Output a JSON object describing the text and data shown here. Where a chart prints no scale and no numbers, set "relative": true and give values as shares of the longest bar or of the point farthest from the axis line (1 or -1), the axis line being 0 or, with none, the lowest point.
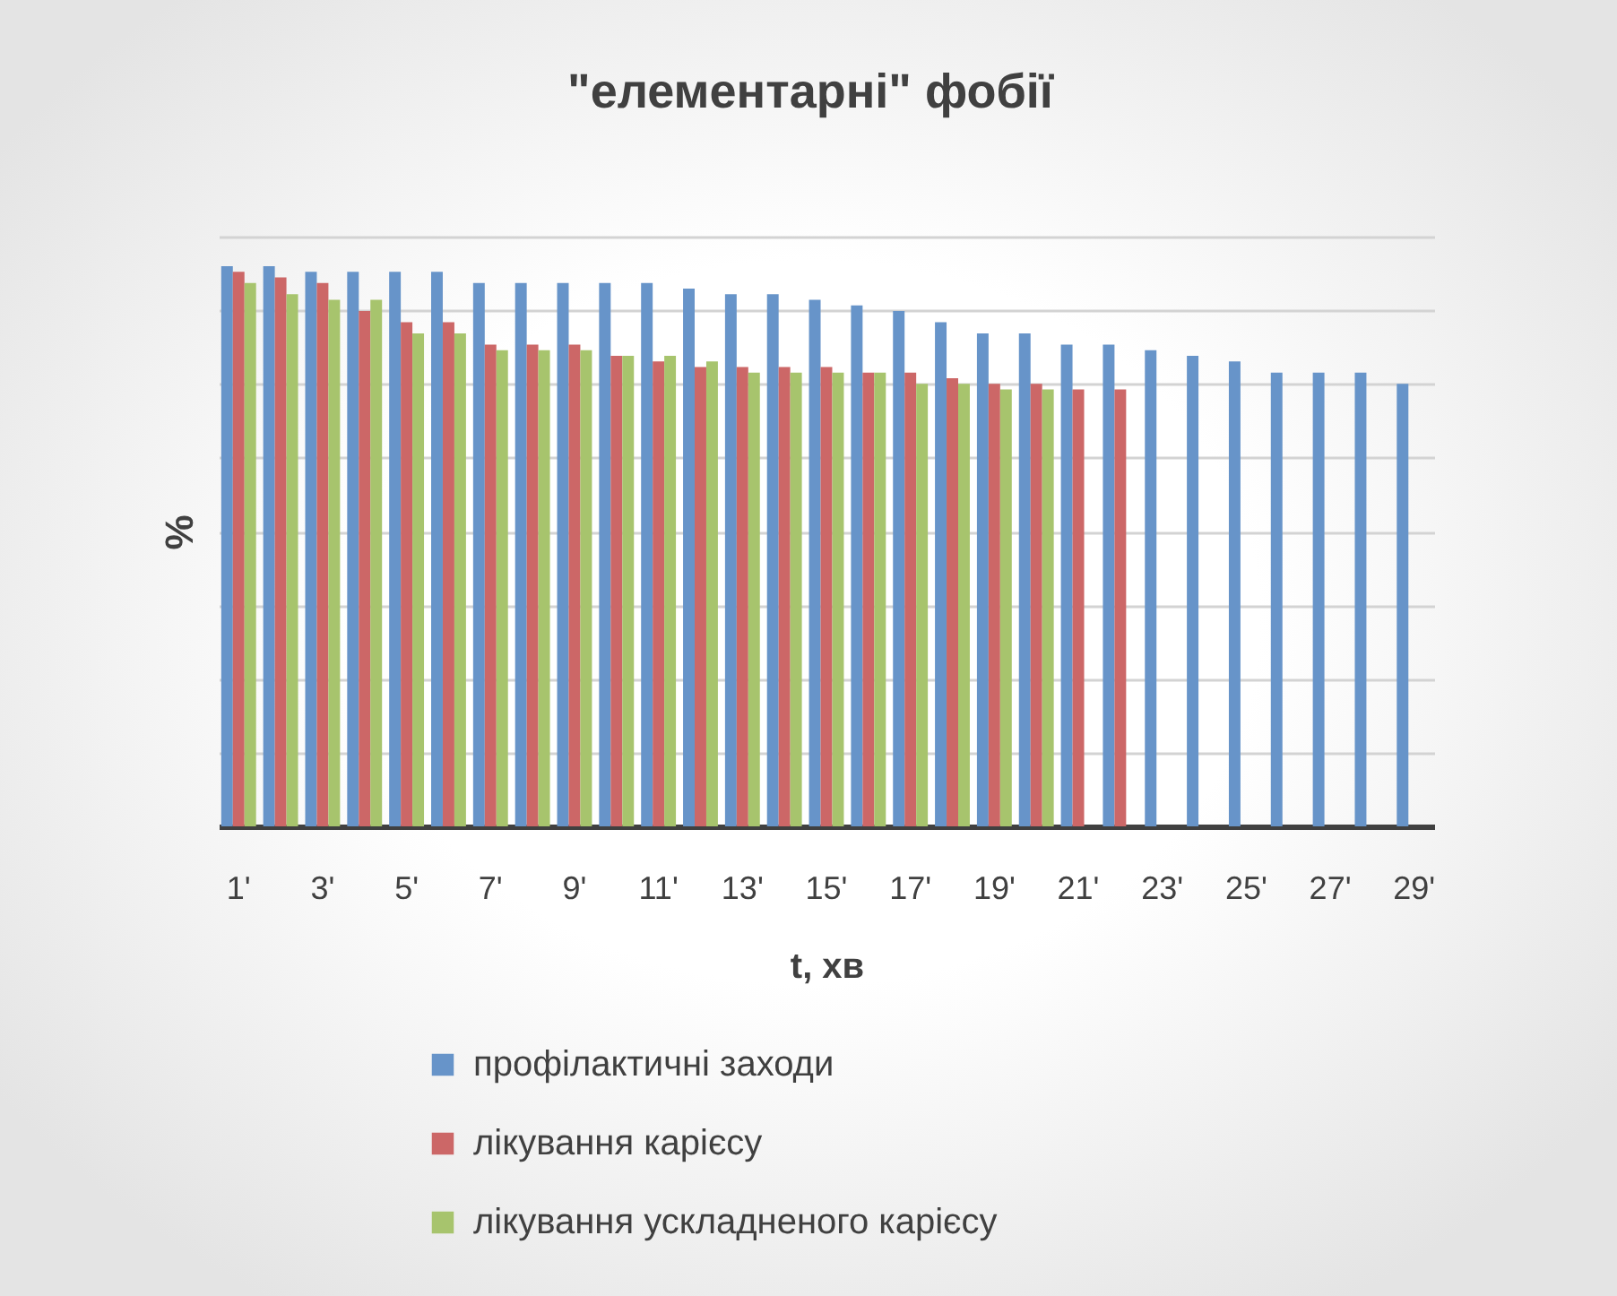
{
  "chart_data": {
    "type": "bar",
    "title": "\"елементарні\" фобії",
    "xlabel": "t, хв",
    "ylabel": "%",
    "categories": [
      "1'",
      null,
      "3'",
      null,
      "5'",
      null,
      "7'",
      null,
      "9'",
      null,
      "11'",
      null,
      "13'",
      null,
      "15'",
      null,
      "17'",
      null,
      "19'",
      null,
      "21'",
      null,
      "23'",
      null,
      "25'",
      null,
      "27'",
      null,
      "29'"
    ],
    "relative": true,
    "grid": "y",
    "legend": "bottom",
    "series": [
      {
        "name": "профілактичні заходи",
        "color": "#6794c9",
        "values": [
          1.0,
          1.0,
          0.99,
          0.99,
          0.99,
          0.99,
          0.97,
          0.97,
          0.97,
          0.97,
          0.97,
          0.96,
          0.95,
          0.95,
          0.94,
          0.93,
          0.92,
          0.9,
          0.88,
          0.88,
          0.86,
          0.86,
          0.85,
          0.84,
          0.83,
          0.81,
          0.81,
          0.81,
          0.79
        ]
      },
      {
        "name": "лікування карієсу",
        "color": "#cc6767",
        "values": [
          0.99,
          0.98,
          0.97,
          0.92,
          0.9,
          0.9,
          0.86,
          0.86,
          0.86,
          0.84,
          0.83,
          0.82,
          0.82,
          0.82,
          0.82,
          0.81,
          0.81,
          0.8,
          0.79,
          0.79,
          0.78,
          0.78,
          null,
          null,
          null,
          null,
          null,
          null,
          null
        ]
      },
      {
        "name": "лікування ускладненого карієсу",
        "color": "#a7c46d",
        "values": [
          0.97,
          0.95,
          0.94,
          0.94,
          0.88,
          0.88,
          0.85,
          0.85,
          0.85,
          0.84,
          0.84,
          0.83,
          0.81,
          0.81,
          0.81,
          0.81,
          0.79,
          0.79,
          0.78,
          0.78,
          null,
          null,
          null,
          null,
          null,
          null,
          null,
          null,
          null
        ]
      }
    ]
  }
}
